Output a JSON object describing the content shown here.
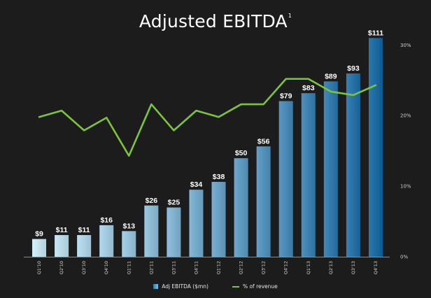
{
  "title": "Adjusted EBITDA",
  "title_footnote": "1",
  "colors": {
    "background": "#1c1c1c",
    "line": "#7cc43a",
    "bar_light": "#cdeefb",
    "bar_dark": "#0f66a5",
    "label": "#ffffff",
    "axis_label": "#cfcfcf"
  },
  "legend": {
    "bar_label": "Adj EBITDA ($mn)",
    "line_label": "% of revenue"
  },
  "chart_data": {
    "type": "bar",
    "categories": [
      "Q1'10",
      "Q2'10",
      "Q3'10",
      "Q4'10",
      "Q1'11",
      "Q2'11",
      "Q3'11",
      "Q4'11",
      "Q1'12",
      "Q2'12",
      "Q3'12",
      "Q4'12",
      "Q1'13",
      "Q2'13",
      "Q3'13",
      "Q4'13"
    ],
    "series": [
      {
        "name": "Adj EBITDA ($mn)",
        "type": "bar",
        "values": [
          9,
          11,
          11,
          16,
          13,
          26,
          25,
          34,
          38,
          50,
          56,
          79,
          83,
          89,
          93,
          111
        ],
        "labels": [
          "$9",
          "$11",
          "$11",
          "$16",
          "$13",
          "$26",
          "$25",
          "$34",
          "$38",
          "$50",
          "$56",
          "$79",
          "$83",
          "$89",
          "$93",
          "$111"
        ]
      },
      {
        "name": "% of revenue",
        "type": "line",
        "axis": "right",
        "values": [
          19.8,
          20.7,
          17.9,
          19.7,
          14.3,
          21.6,
          17.9,
          20.7,
          19.8,
          21.6,
          21.6,
          25.2,
          25.2,
          23.4,
          22.9,
          24.3
        ]
      }
    ],
    "y_left_range": [
      0,
      120
    ],
    "y_right_range": [
      0,
      33.5
    ],
    "y_right_ticks": [
      0,
      10,
      20,
      30
    ],
    "y_right_tick_labels": [
      "0%",
      "10%",
      "20%",
      "30%"
    ],
    "grid": false,
    "legend_position": "bottom"
  }
}
